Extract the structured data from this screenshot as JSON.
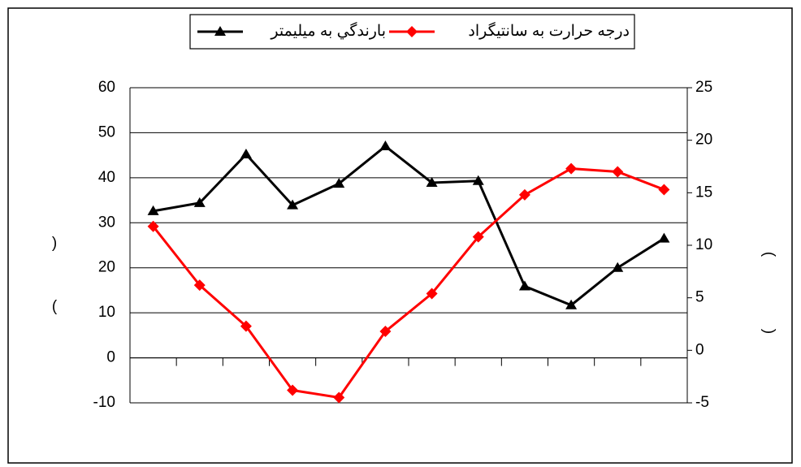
{
  "chart_data": {
    "type": "line",
    "categories": [
      null,
      null,
      null,
      null,
      null,
      null,
      null,
      null,
      null,
      null,
      null,
      null
    ],
    "series": [
      {
        "name": "بارندگي به ميليمتر",
        "color": "#000000",
        "marker": "triangle",
        "axis": "y",
        "values": [
          32.6,
          34.4,
          45.2,
          33.9,
          38.7,
          47.0,
          38.9,
          39.3,
          15.9,
          11.7,
          20.0,
          26.5
        ]
      },
      {
        "name": "درجه حرارت به سانتيگراد",
        "color": "#ff0000",
        "marker": "diamond",
        "axis": "y2",
        "values": [
          11.8,
          6.2,
          2.3,
          -3.8,
          -4.5,
          1.8,
          5.4,
          10.8,
          14.8,
          17.3,
          17.0,
          15.3
        ]
      }
    ],
    "ylim": [
      -10,
      60
    ],
    "yticks": [
      -10,
      0,
      10,
      20,
      30,
      40,
      50,
      60
    ],
    "y2lim": [
      -5,
      25
    ],
    "y2ticks": [
      -5,
      0,
      5,
      10,
      15,
      20,
      25
    ],
    "ylabel_parts": [
      ")",
      "("
    ],
    "y2label_parts": [
      ")",
      "("
    ],
    "grid": true,
    "legend": "top"
  }
}
